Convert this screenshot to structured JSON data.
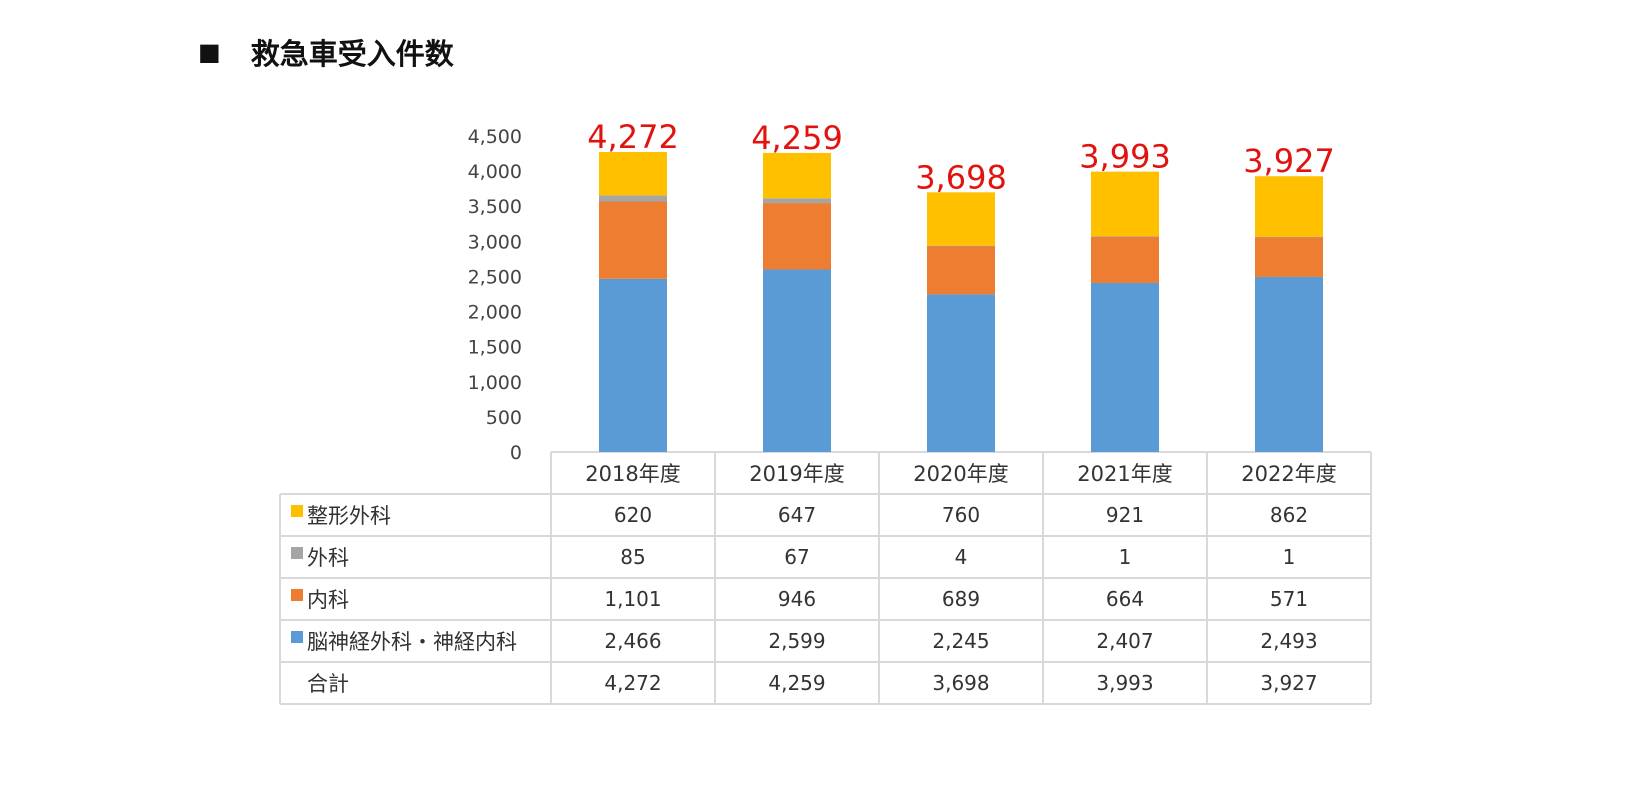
{
  "page": {
    "bullet": "■",
    "title": "救急車受入件数"
  },
  "chart_data": {
    "type": "bar",
    "stacked": true,
    "title": "救急車受入件数",
    "categories": [
      "2018年度",
      "2019年度",
      "2020年度",
      "2021年度",
      "2022年度"
    ],
    "ylim": [
      0,
      4500
    ],
    "y_ticks": [
      0,
      500,
      1000,
      1500,
      2000,
      2500,
      3000,
      3500,
      4000,
      4500
    ],
    "y_tick_labels": [
      "0",
      "500",
      "1,000",
      "1,500",
      "2,000",
      "2,500",
      "3,000",
      "3,500",
      "4,000",
      "4,500"
    ],
    "series": [
      {
        "name": "脳神経外科・神経内科",
        "color": "#5b9bd5",
        "values": [
          2466,
          2599,
          2245,
          2407,
          2493
        ],
        "labels": [
          "2,466",
          "2,599",
          "2,245",
          "2,407",
          "2,493"
        ]
      },
      {
        "name": "内科",
        "color": "#ed7d31",
        "values": [
          1101,
          946,
          689,
          664,
          571
        ],
        "labels": [
          "1,101",
          "946",
          "689",
          "664",
          "571"
        ]
      },
      {
        "name": "外科",
        "color": "#a5a5a5",
        "values": [
          85,
          67,
          4,
          1,
          1
        ],
        "labels": [
          "85",
          "67",
          "4",
          "1",
          "1"
        ]
      },
      {
        "name": "整形外科",
        "color": "#ffc000",
        "values": [
          620,
          647,
          760,
          921,
          862
        ],
        "labels": [
          "620",
          "647",
          "760",
          "921",
          "862"
        ]
      }
    ],
    "totals": {
      "name": "合計",
      "values": [
        4272,
        4259,
        3698,
        3993,
        3927
      ],
      "labels": [
        "4,272",
        "4,259",
        "3,698",
        "3,993",
        "3,927"
      ],
      "color": "#e0130f"
    },
    "table_row_order": [
      "整形外科",
      "外科",
      "内科",
      "脳神経外科・神経内科",
      "合計"
    ]
  }
}
